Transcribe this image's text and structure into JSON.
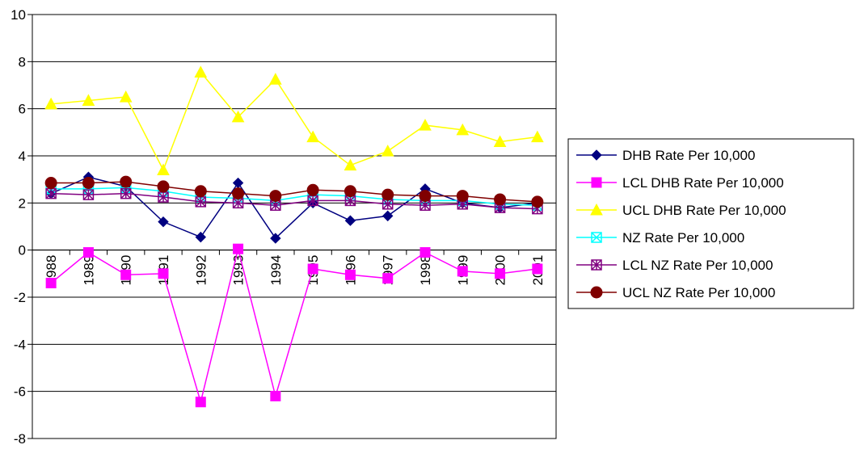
{
  "chart_data": {
    "type": "line",
    "title": "",
    "xlabel": "",
    "ylabel": "",
    "ylim": [
      -8,
      10
    ],
    "yticks": [
      -8,
      -6,
      -4,
      -2,
      0,
      2,
      4,
      6,
      8,
      10
    ],
    "grid": "horizontal major gridlines",
    "legend_position": "right",
    "categories": [
      "1988",
      "1989",
      "1990",
      "1991",
      "1992",
      "1993",
      "1994",
      "1995",
      "1996",
      "1997",
      "1998",
      "1999",
      "2000",
      "2001"
    ],
    "series": [
      {
        "name": "DHB Rate Per 10,000",
        "color": "#000080",
        "marker": "diamond",
        "values": [
          2.4,
          3.1,
          2.7,
          1.2,
          0.55,
          2.85,
          0.5,
          2.0,
          1.25,
          1.45,
          2.6,
          2.0,
          1.8,
          2.0
        ]
      },
      {
        "name": "LCL DHB Rate Per 10,000",
        "color": "#FF00FF",
        "marker": "square",
        "values": [
          -1.4,
          -0.1,
          -1.05,
          -1.0,
          -6.45,
          0.05,
          -6.2,
          -0.8,
          -1.05,
          -1.2,
          -0.1,
          -0.9,
          -1.0,
          -0.8
        ]
      },
      {
        "name": "UCL DHB Rate Per 10,000",
        "color": "#FFFF00",
        "marker": "triangle",
        "values": [
          6.2,
          6.35,
          6.5,
          3.4,
          7.55,
          5.65,
          7.25,
          4.8,
          3.6,
          4.2,
          5.3,
          5.1,
          4.6,
          4.8
        ]
      },
      {
        "name": "NZ Rate Per 10,000",
        "color": "#00FFFF",
        "marker": "square-x",
        "values": [
          2.6,
          2.6,
          2.65,
          2.5,
          2.25,
          2.2,
          2.1,
          2.35,
          2.3,
          2.15,
          2.1,
          2.1,
          1.95,
          1.9
        ]
      },
      {
        "name": "LCL NZ Rate Per 10,000",
        "color": "#800080",
        "marker": "square-star",
        "values": [
          2.4,
          2.35,
          2.4,
          2.25,
          2.05,
          2.0,
          1.9,
          2.1,
          2.1,
          1.95,
          1.9,
          1.95,
          1.8,
          1.75
        ]
      },
      {
        "name": "UCL NZ Rate Per 10,000",
        "color": "#800000",
        "marker": "circle",
        "values": [
          2.85,
          2.85,
          2.9,
          2.7,
          2.5,
          2.4,
          2.3,
          2.55,
          2.5,
          2.35,
          2.3,
          2.3,
          2.15,
          2.05
        ]
      }
    ]
  }
}
